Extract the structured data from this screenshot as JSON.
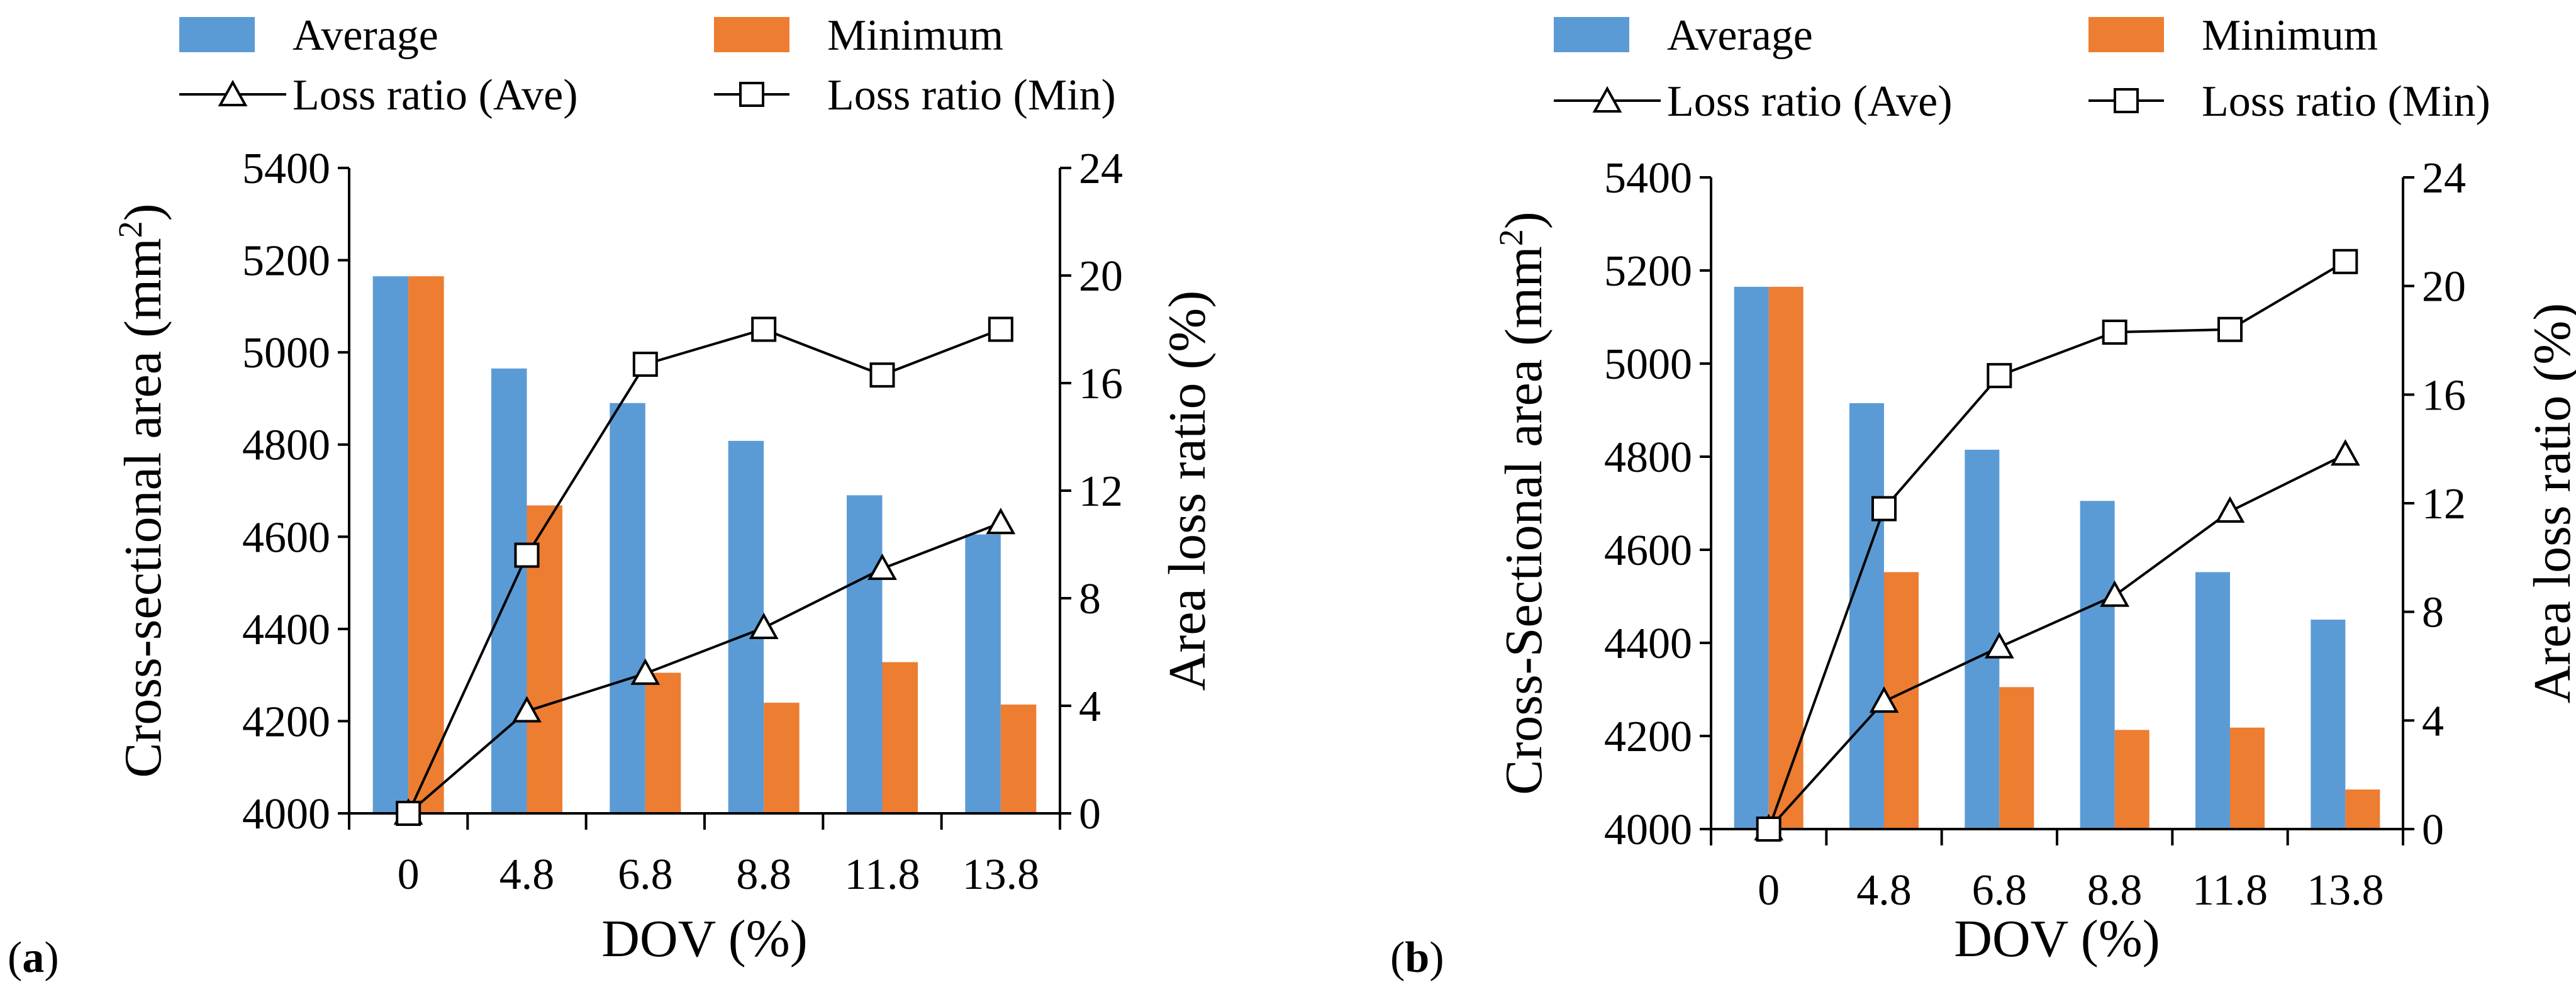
{
  "legend": {
    "average": "Average",
    "minimum": "Minimum",
    "loss_ave": "Loss ratio (Ave)",
    "loss_min": "Loss ratio (Min)"
  },
  "colors": {
    "average": "#5B9BD5",
    "minimum": "#ED7D31",
    "line": "#000000"
  },
  "chart_data": [
    {
      "type": "bar",
      "panel_letter": "a",
      "categories": [
        "0",
        "4.8",
        "6.8",
        "8.8",
        "11.8",
        "13.8"
      ],
      "xlabel": "DOV (%)",
      "ylabel_left": "Cross-sectional area (mm",
      "ylabel_left_sup": "2",
      "ylabel_left_end": ")",
      "ylabel_right": "Area loss ratio (%)",
      "ylim_left": [
        4000,
        5400
      ],
      "yticks_left": [
        4000,
        4200,
        4400,
        4600,
        4800,
        5000,
        5200,
        5400
      ],
      "ylim_right": [
        0,
        24
      ],
      "yticks_right": [
        0,
        4,
        8,
        12,
        16,
        20,
        24
      ],
      "series": [
        {
          "name": "Average",
          "axis": "left",
          "kind": "bar",
          "values": [
            5165,
            4965,
            4890,
            4808,
            4690,
            4605
          ]
        },
        {
          "name": "Minimum",
          "axis": "left",
          "kind": "bar",
          "values": [
            5165,
            4668,
            4305,
            4240,
            4328,
            4236
          ]
        },
        {
          "name": "Loss ratio (Ave)",
          "axis": "right",
          "kind": "line",
          "marker": "triangle",
          "values": [
            0,
            3.8,
            5.2,
            6.9,
            9.1,
            10.8
          ]
        },
        {
          "name": "Loss ratio (Min)",
          "axis": "right",
          "kind": "line",
          "marker": "square",
          "values": [
            0,
            9.6,
            16.7,
            18.0,
            16.3,
            18.0
          ]
        }
      ]
    },
    {
      "type": "bar",
      "panel_letter": "b",
      "categories": [
        "0",
        "4.8",
        "6.8",
        "8.8",
        "11.8",
        "13.8"
      ],
      "xlabel": "DOV (%)",
      "ylabel_left": "Cross-Sectional area (mm",
      "ylabel_left_sup": "2",
      "ylabel_left_end": ")",
      "ylabel_right": "Area loss ratio (%)",
      "ylim_left": [
        4000,
        5400
      ],
      "yticks_left": [
        4000,
        4200,
        4400,
        4600,
        4800,
        5000,
        5200,
        5400
      ],
      "ylim_right": [
        0,
        24
      ],
      "yticks_right": [
        0,
        4,
        8,
        12,
        16,
        20,
        24
      ],
      "series": [
        {
          "name": "Average",
          "axis": "left",
          "kind": "bar",
          "values": [
            5165,
            4915,
            4815,
            4705,
            4552,
            4450
          ]
        },
        {
          "name": "Minimum",
          "axis": "left",
          "kind": "bar",
          "values": [
            5165,
            4552,
            4305,
            4213,
            4218,
            4085
          ]
        },
        {
          "name": "Loss ratio (Ave)",
          "axis": "right",
          "kind": "line",
          "marker": "triangle",
          "values": [
            0,
            4.7,
            6.7,
            8.6,
            11.7,
            13.8
          ]
        },
        {
          "name": "Loss ratio (Min)",
          "axis": "right",
          "kind": "line",
          "marker": "square",
          "values": [
            0,
            11.8,
            16.7,
            18.3,
            18.4,
            20.9
          ]
        }
      ]
    }
  ]
}
